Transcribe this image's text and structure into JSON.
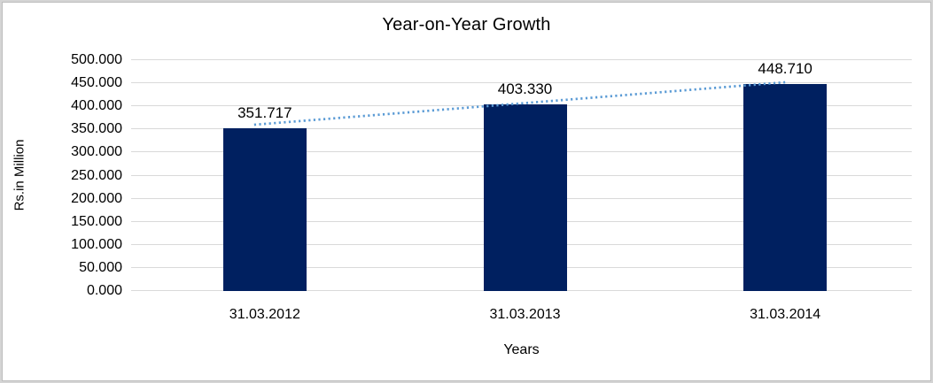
{
  "chart_data": {
    "type": "bar",
    "title": "Year-on-Year Growth",
    "xlabel": "Years",
    "ylabel": "Rs.in Million",
    "categories": [
      "31.03.2012",
      "31.03.2013",
      "31.03.2014"
    ],
    "values": [
      351.717,
      403.33,
      448.71
    ],
    "data_labels": [
      "351.717",
      "403.330",
      "448.710"
    ],
    "y_tick_labels": [
      "0.000",
      "50.000",
      "100.000",
      "150.000",
      "200.000",
      "250.000",
      "300.000",
      "350.000",
      "400.000",
      "450.000",
      "500.000"
    ],
    "ylim": [
      0,
      500
    ],
    "y_step": 50,
    "grid": true,
    "legend_position": "none",
    "trendline": {
      "type": "linear",
      "style": "dotted",
      "color": "#5b9bd5"
    },
    "colors": {
      "bar": "#002060",
      "gridline": "#d9d9d9",
      "text": "#000000",
      "background": "#ffffff",
      "frame_outer": "#d4d4d4",
      "frame_inner": "#bdbdbd"
    }
  }
}
